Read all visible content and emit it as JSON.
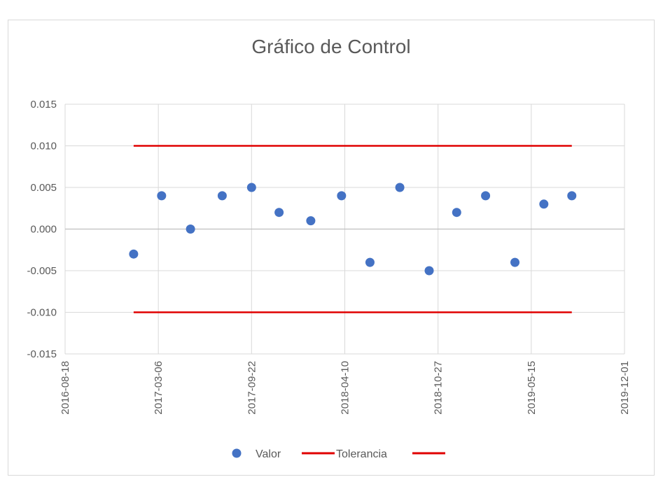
{
  "chart_data": {
    "type": "scatter",
    "title": "Gráfico de Control",
    "xlabel": "",
    "ylabel": "",
    "ylim": [
      -0.015,
      0.015
    ],
    "yticks": [
      "0.015",
      "0.010",
      "0.005",
      "0.000",
      "-0.005",
      "-0.010",
      "-0.015"
    ],
    "ytick_values": [
      0.015,
      0.01,
      0.005,
      0,
      -0.005,
      -0.01,
      -0.015
    ],
    "xlim": [
      "2016-08-18",
      "2019-12-01"
    ],
    "xticks": [
      "2016-08-18",
      "2017-03-06",
      "2017-09-22",
      "2018-04-10",
      "2018-10-27",
      "2019-05-15",
      "2019-12-01"
    ],
    "grid": true,
    "legend_position": "bottom",
    "series": [
      {
        "name": "Valor",
        "kind": "scatter",
        "color": "#4472c4",
        "points": [
          {
            "x": "2017-01-12",
            "y": -0.003
          },
          {
            "x": "2017-03-13",
            "y": 0.004
          },
          {
            "x": "2017-05-14",
            "y": 0.0
          },
          {
            "x": "2017-07-21",
            "y": 0.004
          },
          {
            "x": "2017-09-22",
            "y": 0.005
          },
          {
            "x": "2017-11-20",
            "y": 0.002
          },
          {
            "x": "2018-01-27",
            "y": 0.001
          },
          {
            "x": "2018-04-03",
            "y": 0.004
          },
          {
            "x": "2018-06-03",
            "y": -0.004
          },
          {
            "x": "2018-08-06",
            "y": 0.005
          },
          {
            "x": "2018-10-08",
            "y": -0.005
          },
          {
            "x": "2018-12-06",
            "y": 0.002
          },
          {
            "x": "2019-02-06",
            "y": 0.004
          },
          {
            "x": "2019-04-10",
            "y": -0.004
          },
          {
            "x": "2019-06-11",
            "y": 0.003
          },
          {
            "x": "2019-08-10",
            "y": 0.004
          }
        ]
      },
      {
        "name": "Tolerancia",
        "kind": "line",
        "color": "#e00000",
        "points": [
          {
            "x": "2017-01-12",
            "y": 0.01
          },
          {
            "x": "2019-08-10",
            "y": 0.01
          }
        ]
      },
      {
        "name": "",
        "kind": "line",
        "color": "#e00000",
        "points": [
          {
            "x": "2017-01-12",
            "y": -0.01
          },
          {
            "x": "2019-08-10",
            "y": -0.01
          }
        ]
      }
    ]
  }
}
